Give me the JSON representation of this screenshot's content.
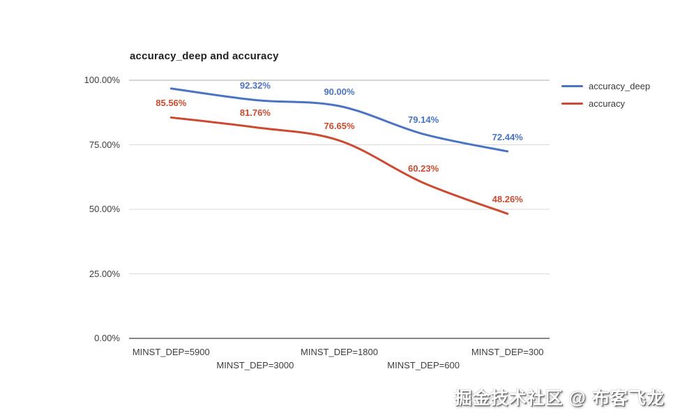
{
  "chart": {
    "title": "accuracy_deep and accuracy"
  },
  "legend": {
    "items": [
      {
        "label": "accuracy_deep",
        "color": "#4a73c1"
      },
      {
        "label": "accuracy",
        "color": "#cb4a31"
      }
    ]
  },
  "watermark": {
    "text": "掘金技术社区 @ 布客飞龙"
  },
  "chart_data": {
    "type": "line",
    "title": "accuracy_deep and accuracy",
    "categories": [
      "MINST_DEP=5900",
      "MINST_DEP=3000",
      "MINST_DEP=1800",
      "MINST_DEP=600",
      "MINST_DEP=300"
    ],
    "series": [
      {
        "name": "accuracy_deep",
        "color": "#4a73c1",
        "values": [
          96.8,
          92.32,
          90.0,
          79.14,
          72.44
        ],
        "labels": [
          null,
          "92.32%",
          "90.00%",
          "79.14%",
          "72.44%"
        ]
      },
      {
        "name": "accuracy",
        "color": "#cb4a31",
        "values": [
          85.56,
          81.76,
          76.65,
          60.23,
          48.26
        ],
        "labels": [
          "85.56%",
          "81.76%",
          "76.65%",
          "60.23%",
          "48.26%"
        ]
      }
    ],
    "y_ticks": [
      {
        "label": "0.00%",
        "value": 0
      },
      {
        "label": "25.00%",
        "value": 25
      },
      {
        "label": "50.00%",
        "value": 50
      },
      {
        "label": "75.00%",
        "value": 75
      },
      {
        "label": "100.00%",
        "value": 100
      }
    ],
    "ylim": [
      0,
      100
    ],
    "grid": true,
    "smooth": true,
    "legend_position": "right",
    "colors": {
      "gridline": "#d9d9d9",
      "gridline_top": "#adadad",
      "axis_line": "#3d3d3d",
      "axis_text": "#3d3d3d"
    }
  }
}
